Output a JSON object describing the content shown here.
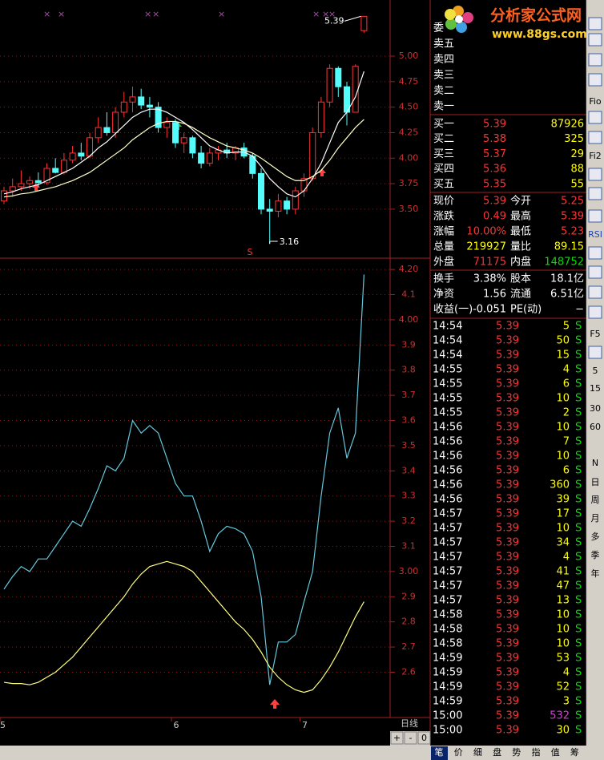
{
  "chart_data": [
    {
      "type": "candlestick",
      "open": [
        3.58,
        3.68,
        3.72,
        3.75,
        3.78,
        3.76,
        3.9,
        3.86,
        3.98,
        4.05,
        4.02,
        4.2,
        4.3,
        4.25,
        4.45,
        4.55,
        4.6,
        4.52,
        4.5,
        4.3,
        4.35,
        4.15,
        4.2,
        4.05,
        3.95,
        4.05,
        4.08,
        4.05,
        4.1,
        4.02,
        3.85,
        3.5,
        3.48,
        3.58,
        3.5,
        3.68,
        3.8,
        4.25,
        4.55,
        4.88,
        4.7,
        4.45,
        5.25
      ],
      "high": [
        3.72,
        3.8,
        3.88,
        3.82,
        3.86,
        3.95,
        4.0,
        4.05,
        4.12,
        4.15,
        4.25,
        4.4,
        4.45,
        4.5,
        4.65,
        4.7,
        4.68,
        4.6,
        4.55,
        4.4,
        4.38,
        4.25,
        4.22,
        4.12,
        4.1,
        4.12,
        4.15,
        4.12,
        4.15,
        4.05,
        3.9,
        3.6,
        3.65,
        3.62,
        3.72,
        3.85,
        4.3,
        4.6,
        4.92,
        4.9,
        4.75,
        4.92,
        5.39
      ],
      "low": [
        3.55,
        3.62,
        3.68,
        3.7,
        3.72,
        3.74,
        3.85,
        3.84,
        3.95,
        3.98,
        4.0,
        4.15,
        4.22,
        4.2,
        4.4,
        4.45,
        4.48,
        4.4,
        4.25,
        4.2,
        4.1,
        4.05,
        4.0,
        3.9,
        3.92,
        3.98,
        4.0,
        3.98,
        4.0,
        3.8,
        3.45,
        3.16,
        3.42,
        3.45,
        3.45,
        3.62,
        3.78,
        4.2,
        4.5,
        4.6,
        4.32,
        4.45,
        5.23
      ],
      "close": [
        3.68,
        3.72,
        3.75,
        3.78,
        3.76,
        3.9,
        3.86,
        3.98,
        4.05,
        4.02,
        4.2,
        4.3,
        4.25,
        4.45,
        4.55,
        4.6,
        4.52,
        4.5,
        4.3,
        4.35,
        4.15,
        4.2,
        4.05,
        3.95,
        4.05,
        4.08,
        4.05,
        4.1,
        4.02,
        3.85,
        3.5,
        3.48,
        3.58,
        3.5,
        3.68,
        3.8,
        4.25,
        4.55,
        4.88,
        4.7,
        4.45,
        4.9,
        5.39
      ],
      "up_color": "#ff3232",
      "down_color": "#54fcfc",
      "series": [
        {
          "color": "#ffffff",
          "values": [
            3.65,
            3.67,
            3.7,
            3.72,
            3.74,
            3.78,
            3.82,
            3.86,
            3.9,
            3.96,
            4.02,
            4.1,
            4.16,
            4.24,
            4.32,
            4.4,
            4.45,
            4.48,
            4.48,
            4.45,
            4.4,
            4.35,
            4.28,
            4.2,
            4.12,
            4.08,
            4.05,
            4.06,
            4.06,
            4.02,
            3.92,
            3.8,
            3.72,
            3.65,
            3.62,
            3.68,
            3.8,
            3.95,
            4.15,
            4.35,
            4.45,
            4.6,
            4.85
          ]
        },
        {
          "color": "#ffffc8",
          "values": [
            3.62,
            3.63,
            3.65,
            3.66,
            3.68,
            3.7,
            3.72,
            3.75,
            3.78,
            3.82,
            3.86,
            3.92,
            3.98,
            4.04,
            4.1,
            4.18,
            4.24,
            4.3,
            4.34,
            4.36,
            4.36,
            4.34,
            4.3,
            4.25,
            4.2,
            4.16,
            4.12,
            4.1,
            4.08,
            4.05,
            4.0,
            3.94,
            3.88,
            3.82,
            3.78,
            3.78,
            3.82,
            3.88,
            3.98,
            4.1,
            4.2,
            4.3,
            4.38
          ]
        }
      ],
      "ylim": [
        3.02,
        5.55
      ],
      "yticks": [
        {
          "value": 5.0,
          "label": "5.00"
        },
        4.75,
        {
          "value": 4.5,
          "label": "4.50"
        },
        4.25,
        {
          "value": 4.0,
          "label": "4.00"
        },
        3.75,
        {
          "value": 3.5,
          "label": "3.50"
        }
      ],
      "high_label": 5.39,
      "low_label": 3.16,
      "signal": "S"
    },
    {
      "type": "line",
      "categories": [
        "5",
        null,
        null,
        null,
        null,
        null,
        null,
        null,
        null,
        null,
        null,
        null,
        null,
        null,
        null,
        null,
        null,
        null,
        null,
        null,
        "6",
        null,
        null,
        null,
        null,
        null,
        null,
        null,
        null,
        null,
        null,
        null,
        null,
        null,
        null,
        "7",
        null,
        null,
        null,
        null,
        null,
        null,
        null
      ],
      "series": [
        {
          "color": "#64c8dc",
          "values": [
            2.93,
            2.98,
            3.02,
            3.0,
            3.05,
            3.05,
            3.1,
            3.15,
            3.2,
            3.18,
            3.25,
            3.33,
            3.42,
            3.4,
            3.45,
            3.6,
            3.55,
            3.58,
            3.55,
            3.45,
            3.35,
            3.3,
            3.3,
            3.2,
            3.08,
            3.15,
            3.18,
            3.17,
            3.15,
            3.08,
            2.9,
            2.55,
            2.72,
            2.72,
            2.75,
            2.88,
            3.0,
            3.3,
            3.55,
            3.65,
            3.45,
            3.55,
            4.18
          ]
        },
        {
          "color": "#ffff80",
          "values": [
            2.56,
            2.555,
            2.555,
            2.55,
            2.56,
            2.58,
            2.6,
            2.63,
            2.66,
            2.7,
            2.74,
            2.78,
            2.82,
            2.86,
            2.9,
            2.95,
            2.99,
            3.02,
            3.03,
            3.04,
            3.03,
            3.02,
            3.0,
            2.96,
            2.92,
            2.88,
            2.84,
            2.8,
            2.77,
            2.73,
            2.68,
            2.62,
            2.58,
            2.55,
            2.53,
            2.52,
            2.53,
            2.57,
            2.62,
            2.68,
            2.75,
            2.82,
            2.88
          ]
        }
      ],
      "ylim": [
        2.42,
        4.245
      ],
      "yticks": [
        {
          "value": 4.2,
          "label": "4.20"
        },
        4.1,
        {
          "value": 4.0,
          "label": "4.00"
        },
        3.9,
        3.8,
        3.7,
        3.6,
        3.5,
        3.4,
        3.3,
        3.2,
        3.1,
        {
          "value": 3.0,
          "label": "3.00"
        },
        2.9,
        2.8,
        2.7,
        2.6
      ],
      "period": "日线"
    }
  ],
  "controls": [
    "+",
    "-",
    "0"
  ],
  "logo": {
    "title": "分析家公式网",
    "url": "www.88gs.com"
  },
  "quote": {
    "order_label": "委",
    "sells": [
      "卖五",
      "卖四",
      "卖三",
      "卖二",
      "卖一"
    ],
    "buys": [
      {
        "label": "买一",
        "price": "5.39",
        "volume": "87926"
      },
      {
        "label": "买二",
        "price": "5.38",
        "volume": "325"
      },
      {
        "label": "买三",
        "price": "5.37",
        "volume": "29"
      },
      {
        "label": "买四",
        "price": "5.36",
        "volume": "88"
      },
      {
        "label": "买五",
        "price": "5.35",
        "volume": "55"
      }
    ],
    "stats": [
      [
        {
          "label": "现价",
          "value": "5.39",
          "color": "#ff3232"
        },
        {
          "label": "今开",
          "value": "5.25",
          "color": "#ff3232"
        }
      ],
      [
        {
          "label": "涨跌",
          "value": "0.49",
          "color": "#ff3232"
        },
        {
          "label": "最高",
          "value": "5.39",
          "color": "#ff3232"
        }
      ],
      [
        {
          "label": "涨幅",
          "value": "10.00%",
          "color": "#ff3232"
        },
        {
          "label": "最低",
          "value": "5.23",
          "color": "#ff3232"
        }
      ],
      [
        {
          "label": "总量",
          "value": "219927",
          "color": "#ffff00"
        },
        {
          "label": "量比",
          "value": "89.15",
          "color": "#ffff00"
        }
      ],
      [
        {
          "label": "外盘",
          "value": "71175",
          "color": "#ff3232"
        },
        {
          "label": "内盘",
          "value": "148752",
          "color": "#00e000"
        }
      ],
      [
        {
          "label": "换手",
          "value": "3.38%",
          "color": "#ffffff"
        },
        {
          "label": "股本",
          "value": "18.1亿",
          "color": "#ffffff"
        }
      ],
      [
        {
          "label": "净资",
          "value": "1.56",
          "color": "#ffffff"
        },
        {
          "label": "流通",
          "value": "6.51亿",
          "color": "#ffffff"
        }
      ],
      [
        {
          "label": "收益(一)",
          "value": "-0.051",
          "color": "#ffffff"
        },
        {
          "label": "PE(动)",
          "value": "−",
          "color": "#ffffff"
        }
      ]
    ]
  },
  "trades": [
    {
      "time": "14:54",
      "price": "5.39",
      "volume": "5",
      "side": "S"
    },
    {
      "time": "14:54",
      "price": "5.39",
      "volume": "50",
      "side": "S"
    },
    {
      "time": "14:54",
      "price": "5.39",
      "volume": "15",
      "side": "S"
    },
    {
      "time": "14:55",
      "price": "5.39",
      "volume": "4",
      "side": "S"
    },
    {
      "time": "14:55",
      "price": "5.39",
      "volume": "6",
      "side": "S"
    },
    {
      "time": "14:55",
      "price": "5.39",
      "volume": "10",
      "side": "S"
    },
    {
      "time": "14:55",
      "price": "5.39",
      "volume": "2",
      "side": "S"
    },
    {
      "time": "14:56",
      "price": "5.39",
      "volume": "10",
      "side": "S"
    },
    {
      "time": "14:56",
      "price": "5.39",
      "volume": "7",
      "side": "S"
    },
    {
      "time": "14:56",
      "price": "5.39",
      "volume": "10",
      "side": "S"
    },
    {
      "time": "14:56",
      "price": "5.39",
      "volume": "6",
      "side": "S"
    },
    {
      "time": "14:56",
      "price": "5.39",
      "volume": "360",
      "side": "S"
    },
    {
      "time": "14:56",
      "price": "5.39",
      "volume": "39",
      "side": "S"
    },
    {
      "time": "14:57",
      "price": "5.39",
      "volume": "17",
      "side": "S"
    },
    {
      "time": "14:57",
      "price": "5.39",
      "volume": "10",
      "side": "S"
    },
    {
      "time": "14:57",
      "price": "5.39",
      "volume": "34",
      "side": "S"
    },
    {
      "time": "14:57",
      "price": "5.39",
      "volume": "4",
      "side": "S"
    },
    {
      "time": "14:57",
      "price": "5.39",
      "volume": "41",
      "side": "S"
    },
    {
      "time": "14:57",
      "price": "5.39",
      "volume": "47",
      "side": "S"
    },
    {
      "time": "14:57",
      "price": "5.39",
      "volume": "13",
      "side": "S"
    },
    {
      "time": "14:58",
      "price": "5.39",
      "volume": "10",
      "side": "S"
    },
    {
      "time": "14:58",
      "price": "5.39",
      "volume": "10",
      "side": "S"
    },
    {
      "time": "14:58",
      "price": "5.39",
      "volume": "10",
      "side": "S"
    },
    {
      "time": "14:59",
      "price": "5.39",
      "volume": "53",
      "side": "S"
    },
    {
      "time": "14:59",
      "price": "5.39",
      "volume": "4",
      "side": "S"
    },
    {
      "time": "14:59",
      "price": "5.39",
      "volume": "52",
      "side": "S"
    },
    {
      "time": "14:59",
      "price": "5.39",
      "volume": "3",
      "side": "S"
    },
    {
      "time": "15:00",
      "price": "5.39",
      "volume": "532",
      "side": "S",
      "color": "#d040d0"
    },
    {
      "time": "15:00",
      "price": "5.39",
      "volume": "30",
      "side": "S"
    }
  ],
  "toolbar": [
    "Fio",
    "Fi2",
    "RSI",
    "F5",
    "5",
    "15",
    "30",
    "60",
    "N",
    "日",
    "周",
    "月",
    "多",
    "季",
    "年"
  ],
  "tabs": [
    "笔",
    "价",
    "细",
    "盘",
    "势",
    "指",
    "值",
    "筹"
  ]
}
